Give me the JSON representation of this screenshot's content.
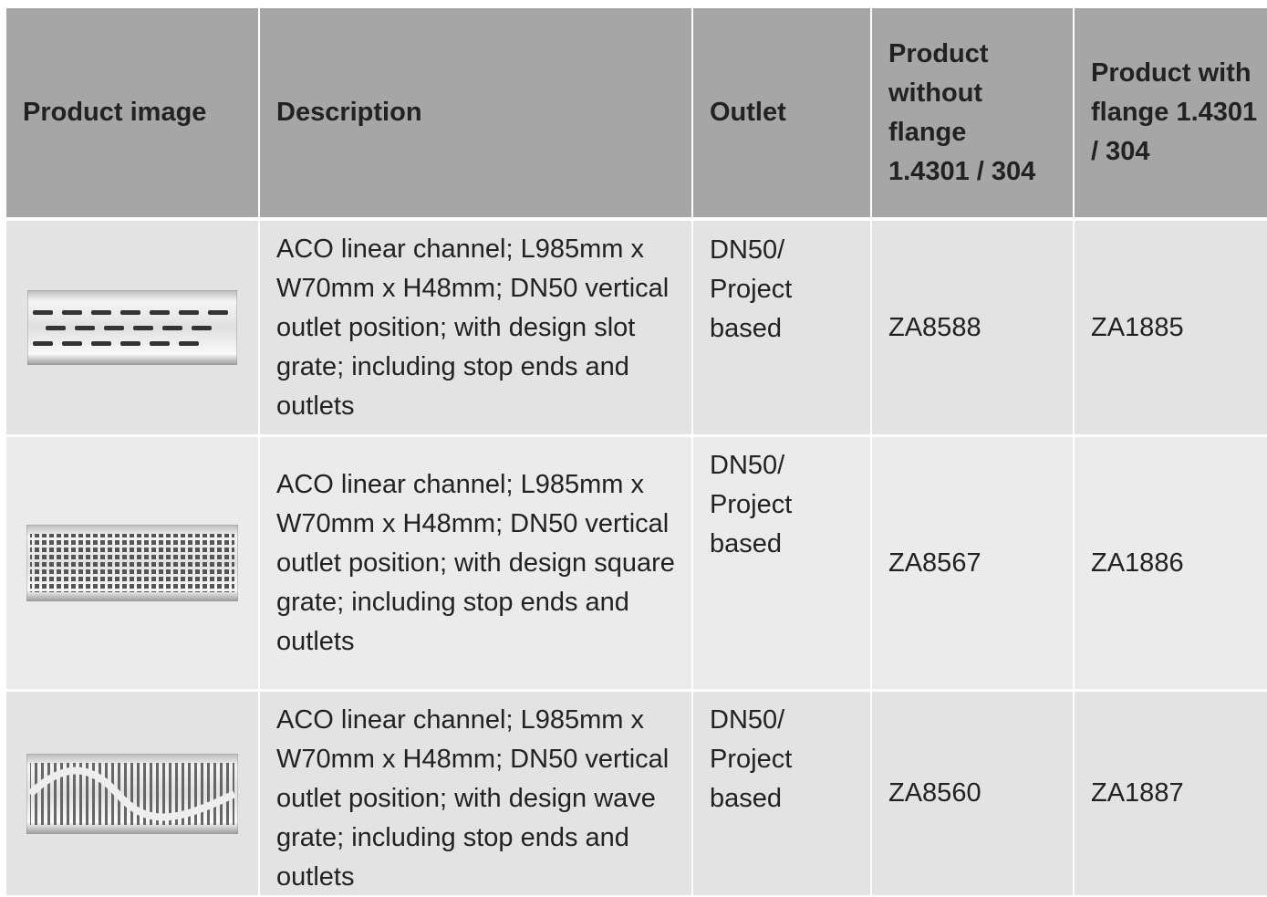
{
  "table": {
    "header": [
      "Product image",
      "Description",
      "Outlet",
      "Product without flange 1.4301 / 304",
      "Product with flange 1.4301 / 304"
    ],
    "rows": [
      {
        "description": "ACO linear channel; L985mm x W70mm x H48mm; DN50 vertical outlet position; with design slot grate; including stop ends and outlets",
        "outlet": "DN50/ Project based",
        "without_flange": "ZA8588",
        "with_flange": "ZA1885"
      },
      {
        "description": "ACO linear channel; L985mm x W70mm x H48mm; DN50 vertical outlet position; with design square grate; including stop ends and outlets",
        "outlet": "DN50/ Project based",
        "without_flange": "ZA8567",
        "with_flange": "ZA1886"
      },
      {
        "description": "ACO linear channel; L985mm x W70mm x H48mm; DN50 vertical outlet position; with design wave grate; including stop ends and outlets",
        "outlet": "DN50/ Project based",
        "without_flange": "ZA8560",
        "with_flange": "ZA1887"
      }
    ]
  }
}
